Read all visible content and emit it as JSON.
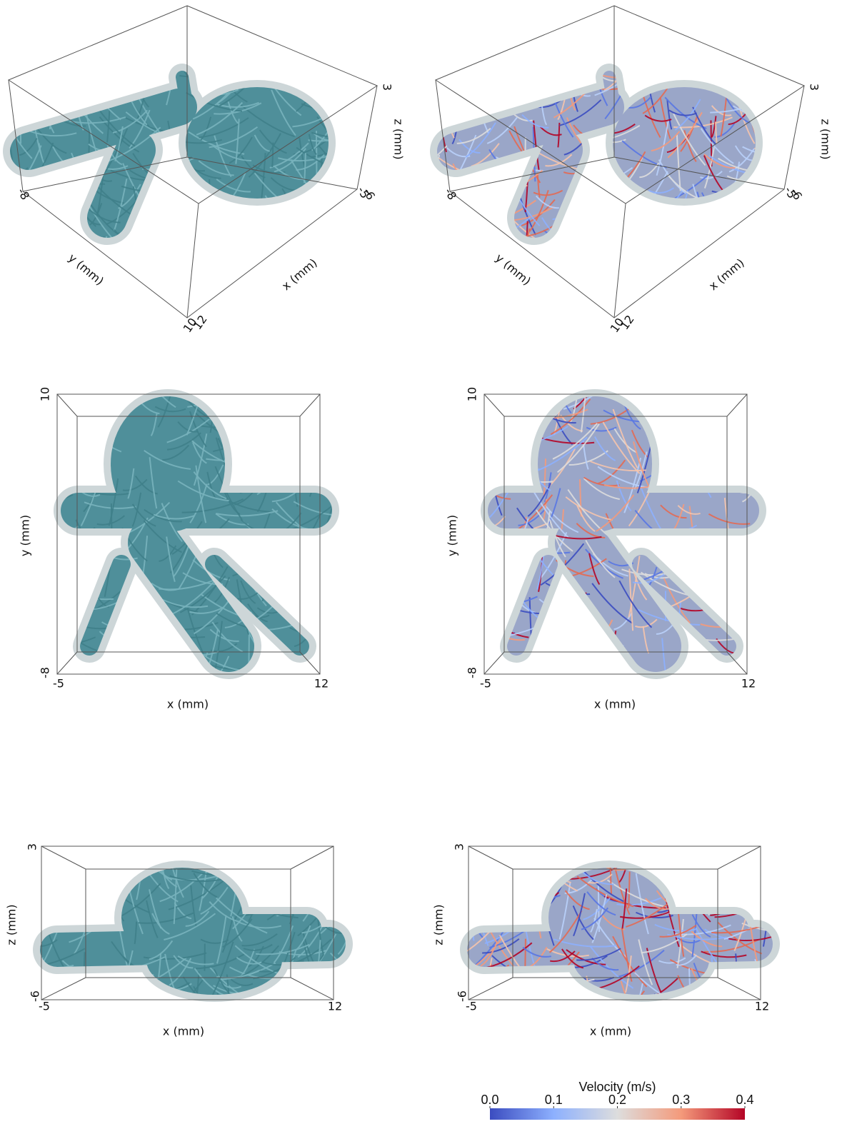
{
  "panels": [
    {
      "axis_labels": [
        "z (mm)",
        "y (mm)",
        "x (mm)"
      ],
      "tick_labels": [
        "3",
        "-5",
        "-6",
        "-8",
        "10",
        "12"
      ]
    },
    {
      "axis_labels": [
        "z (mm)",
        "y (mm)",
        "x (mm)"
      ],
      "tick_labels": [
        "3",
        "-5",
        "-6",
        "-8",
        "10",
        "12"
      ]
    },
    {
      "axis_labels": [
        "y (mm)",
        "x (mm)"
      ],
      "tick_labels": [
        "10",
        "-8",
        "-5",
        "12"
      ]
    },
    {
      "axis_labels": [
        "y (mm)",
        "x (mm)"
      ],
      "tick_labels": [
        "10",
        "-8",
        "-5",
        "12"
      ]
    },
    {
      "axis_labels": [
        "z (mm)",
        "x (mm)"
      ],
      "tick_labels": [
        "3",
        "-6",
        "-5",
        "12"
      ]
    },
    {
      "axis_labels": [
        "z (mm)",
        "x (mm)"
      ],
      "tick_labels": [
        "3",
        "-6",
        "-5",
        "12"
      ]
    }
  ],
  "colorbar": {
    "title": "Velocity (m/s)",
    "lim": [
      0,
      0.4
    ],
    "ticks": [
      {
        "value": 0,
        "label": "0.0"
      },
      0.1,
      0.2,
      0.3,
      0.4
    ]
  }
}
